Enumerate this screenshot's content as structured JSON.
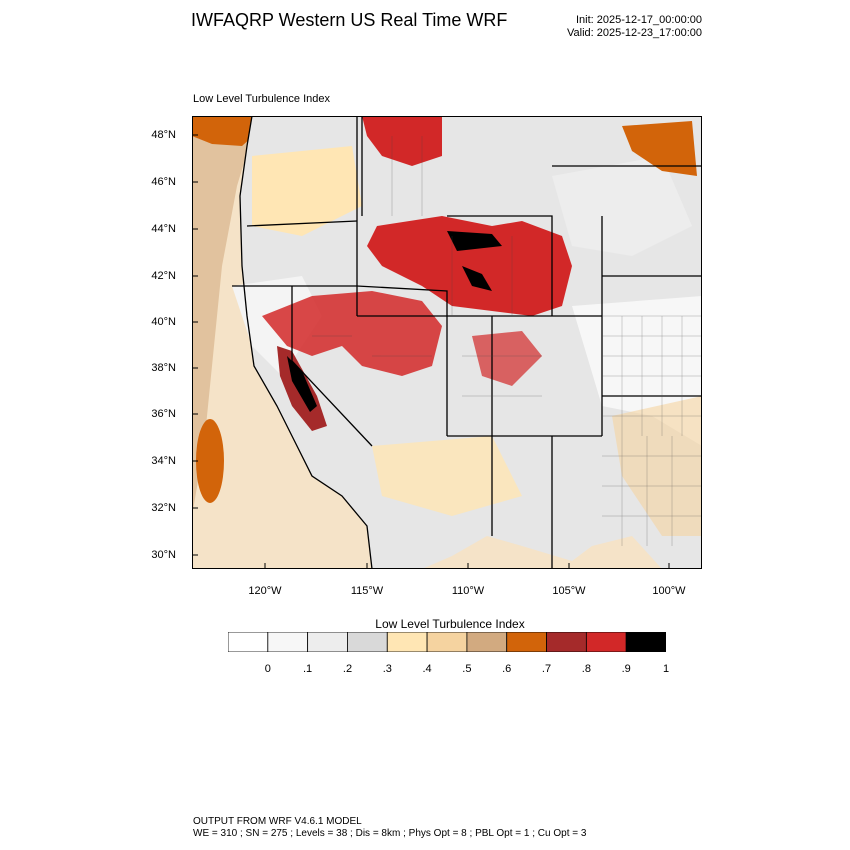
{
  "header": {
    "title": "IWFAQRP Western US Real Time WRF",
    "init": "Init: 2025-12-17_00:00:00",
    "valid": "Valid: 2025-12-23_17:00:00"
  },
  "map": {
    "subtitle": "Low Level Turbulence Index",
    "lat_labels": [
      "48°N",
      "46°N",
      "44°N",
      "42°N",
      "40°N",
      "38°N",
      "36°N",
      "34°N",
      "32°N",
      "30°N"
    ],
    "lon_labels": [
      "120°W",
      "115°W",
      "110°W",
      "105°W",
      "100°W"
    ]
  },
  "colorbar": {
    "title": "Low Level Turbulence Index",
    "ticks": [
      "0",
      ".1",
      ".2",
      ".3",
      ".4",
      ".5",
      ".6",
      ".7",
      ".8",
      ".9",
      "1"
    ],
    "colors": [
      "#ffffff",
      "#f7f7f7",
      "#ededed",
      "#d9d9d9",
      "#ffe6b4",
      "#f5d3a0",
      "#d2aa80",
      "#d2640a",
      "#a52a2a",
      "#d22828",
      "#000000"
    ]
  },
  "footer": {
    "model": "OUTPUT FROM WRF V4.6.1 MODEL",
    "config": "WE = 310 ; SN = 275 ; Levels = 38 ; Dis = 8km ; Phys Opt = 8 ; PBL Opt = 1 ; Cu Opt = 3"
  }
}
